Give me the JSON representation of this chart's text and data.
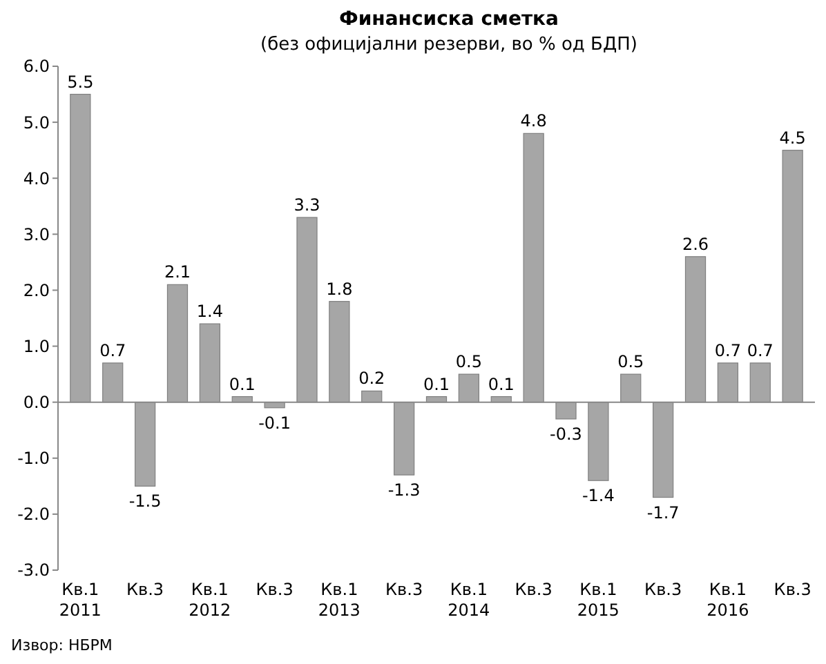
{
  "chart_data": {
    "type": "bar",
    "title": "Финансиска сметка",
    "subtitle": "(без официјални резерви, во % од БДП)",
    "categories": [
      "Кв.1 2011",
      null,
      "Кв.3",
      null,
      "Кв.1 2012",
      null,
      "Кв.3",
      null,
      "Кв.1 2013",
      null,
      "Кв.3",
      null,
      "Кв.1 2014",
      null,
      "Кв.3",
      null,
      "Кв.1 2015",
      null,
      "Кв.3",
      null,
      "Кв.1 2016",
      null,
      "Кв.3"
    ],
    "values": [
      5.5,
      0.7,
      -1.5,
      2.1,
      1.4,
      0.1,
      -0.1,
      3.3,
      1.8,
      0.2,
      -1.3,
      0.1,
      0.5,
      0.1,
      4.8,
      -0.3,
      -1.4,
      0.5,
      -1.7,
      2.6,
      0.7,
      0.7,
      4.5
    ],
    "color": "#a6a6a6",
    "data_labels": true,
    "ylim": [
      -3,
      6
    ],
    "yticks": [
      {
        "value": -3,
        "label": "-3.0"
      },
      {
        "value": -2,
        "label": "-2.0"
      },
      {
        "value": -1,
        "label": "-1.0"
      },
      {
        "value": 0,
        "label": "0.0"
      },
      {
        "value": 1,
        "label": "1.0"
      },
      {
        "value": 2,
        "label": "2.0"
      },
      {
        "value": 3,
        "label": "3.0"
      },
      {
        "value": 4,
        "label": "4.0"
      },
      {
        "value": 5,
        "label": "5.0"
      },
      {
        "value": 6,
        "label": "6.0"
      }
    ],
    "annotations": [
      "Извор: НБРМ"
    ]
  }
}
